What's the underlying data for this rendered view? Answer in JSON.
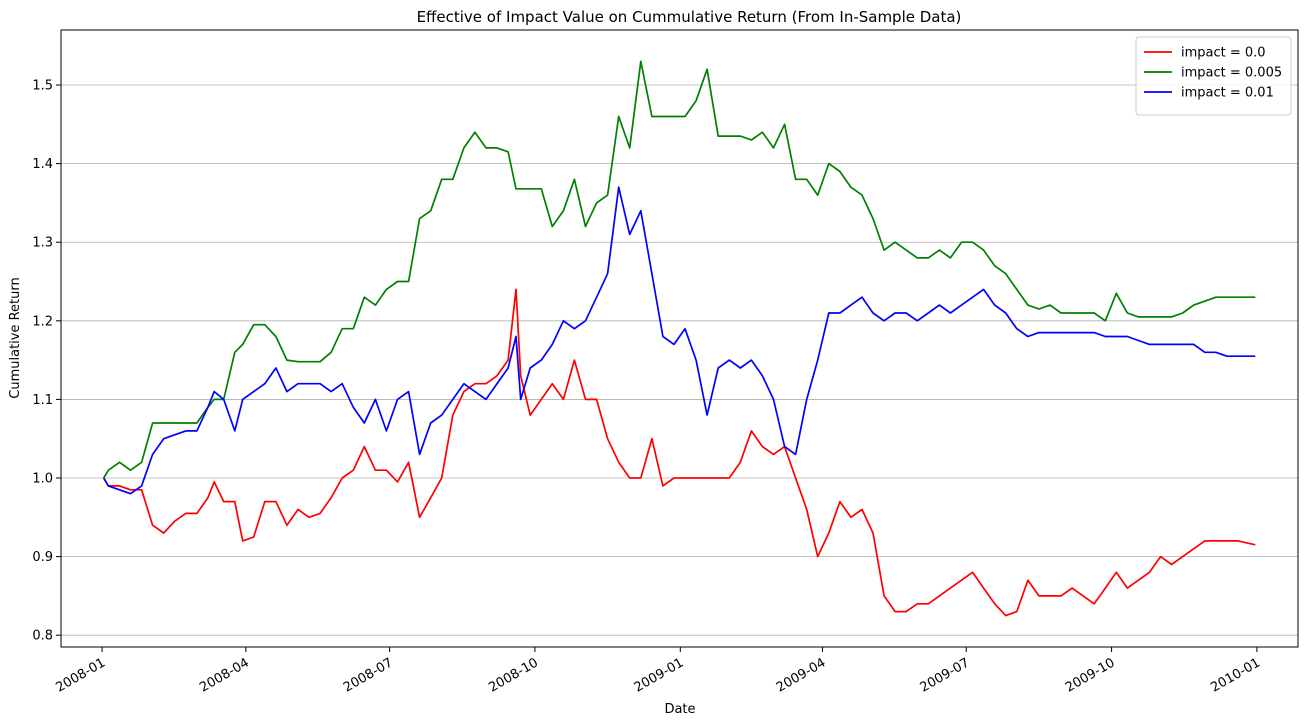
{
  "chart_data": {
    "type": "line",
    "title": "Effective of Impact Value on Cummulative Return (From In-Sample Data)",
    "xlabel": "Date",
    "ylabel": "Cumulative Return",
    "xlim": [
      "2007-12-06",
      "2010-01-27"
    ],
    "ylim": [
      0.785,
      1.57
    ],
    "yticks": [
      0.8,
      0.9,
      1.0,
      1.1,
      1.2,
      1.3,
      1.4,
      1.5
    ],
    "ytick_labels": [
      "0.8",
      "0.9",
      "1.0",
      "1.1",
      "1.2",
      "1.3",
      "1.4",
      "1.5"
    ],
    "xticks": [
      "2008-01-01",
      "2008-04-01",
      "2008-07-01",
      "2008-10-01",
      "2009-01-01",
      "2009-04-01",
      "2009-07-01",
      "2009-10-01",
      "2010-01-01"
    ],
    "xtick_labels": [
      "2008-01",
      "2008-04",
      "2008-07",
      "2008-10",
      "2009-01",
      "2009-04",
      "2009-07",
      "2009-10",
      "2010-01"
    ],
    "grid": "horizontal",
    "legend": "top-right",
    "series": [
      {
        "name": "impact = 0.0",
        "color": "#ff0000",
        "x": [
          "2008-01-02",
          "2008-01-05",
          "2008-01-12",
          "2008-01-19",
          "2008-01-26",
          "2008-02-02",
          "2008-02-09",
          "2008-02-16",
          "2008-02-23",
          "2008-03-01",
          "2008-03-08",
          "2008-03-12",
          "2008-03-18",
          "2008-03-25",
          "2008-03-30",
          "2008-04-06",
          "2008-04-13",
          "2008-04-20",
          "2008-04-27",
          "2008-05-04",
          "2008-05-11",
          "2008-05-18",
          "2008-05-25",
          "2008-06-01",
          "2008-06-08",
          "2008-06-15",
          "2008-06-22",
          "2008-06-29",
          "2008-07-06",
          "2008-07-13",
          "2008-07-20",
          "2008-07-27",
          "2008-08-03",
          "2008-08-10",
          "2008-08-17",
          "2008-08-24",
          "2008-08-31",
          "2008-09-07",
          "2008-09-14",
          "2008-09-19",
          "2008-09-22",
          "2008-09-28",
          "2008-10-05",
          "2008-10-12",
          "2008-10-19",
          "2008-10-26",
          "2008-11-02",
          "2008-11-09",
          "2008-11-16",
          "2008-11-23",
          "2008-11-30",
          "2008-12-07",
          "2008-12-14",
          "2008-12-21",
          "2008-12-28",
          "2009-01-04",
          "2009-01-11",
          "2009-01-18",
          "2009-01-25",
          "2009-02-01",
          "2009-02-08",
          "2009-02-15",
          "2009-02-22",
          "2009-03-01",
          "2009-03-08",
          "2009-03-15",
          "2009-03-22",
          "2009-03-29",
          "2009-04-05",
          "2009-04-12",
          "2009-04-19",
          "2009-04-26",
          "2009-05-03",
          "2009-05-10",
          "2009-05-17",
          "2009-05-24",
          "2009-05-31",
          "2009-06-07",
          "2009-06-14",
          "2009-06-21",
          "2009-06-28",
          "2009-07-05",
          "2009-07-12",
          "2009-07-19",
          "2009-07-26",
          "2009-08-02",
          "2009-08-09",
          "2009-08-16",
          "2009-08-23",
          "2009-08-30",
          "2009-09-06",
          "2009-09-13",
          "2009-09-20",
          "2009-09-27",
          "2009-10-04",
          "2009-10-11",
          "2009-10-18",
          "2009-10-25",
          "2009-11-01",
          "2009-11-08",
          "2009-11-15",
          "2009-11-22",
          "2009-11-29",
          "2009-12-06",
          "2009-12-13",
          "2009-12-20",
          "2009-12-31"
        ],
        "y": [
          1.0,
          0.99,
          0.99,
          0.985,
          0.985,
          0.94,
          0.93,
          0.945,
          0.955,
          0.955,
          0.975,
          0.995,
          0.97,
          0.97,
          0.92,
          0.925,
          0.97,
          0.97,
          0.94,
          0.96,
          0.95,
          0.955,
          0.975,
          1.0,
          1.01,
          1.04,
          1.01,
          1.01,
          0.995,
          1.02,
          0.95,
          0.975,
          1.0,
          1.08,
          1.11,
          1.12,
          1.12,
          1.13,
          1.15,
          1.24,
          1.13,
          1.08,
          1.1,
          1.12,
          1.1,
          1.15,
          1.1,
          1.1,
          1.05,
          1.02,
          1.0,
          1.0,
          1.05,
          0.99,
          1.0,
          1.0,
          1.0,
          1.0,
          1.0,
          1.0,
          1.02,
          1.06,
          1.04,
          1.03,
          1.04,
          1.0,
          0.96,
          0.9,
          0.93,
          0.97,
          0.95,
          0.96,
          0.93,
          0.85,
          0.83,
          0.83,
          0.84,
          0.84,
          0.85,
          0.86,
          0.87,
          0.88,
          0.86,
          0.84,
          0.825,
          0.83,
          0.87,
          0.85,
          0.85,
          0.85,
          0.86,
          0.85,
          0.84,
          0.86,
          0.88,
          0.86,
          0.87,
          0.88,
          0.9,
          0.89,
          0.9,
          0.91,
          0.92,
          0.92,
          0.92,
          0.92,
          0.915
        ]
      },
      {
        "name": "impact = 0.005",
        "color": "#008000",
        "x": [
          "2008-01-02",
          "2008-01-05",
          "2008-01-12",
          "2008-01-19",
          "2008-01-26",
          "2008-02-02",
          "2008-02-09",
          "2008-02-16",
          "2008-02-23",
          "2008-03-01",
          "2008-03-08",
          "2008-03-12",
          "2008-03-18",
          "2008-03-25",
          "2008-03-30",
          "2008-04-06",
          "2008-04-13",
          "2008-04-20",
          "2008-04-27",
          "2008-05-04",
          "2008-05-11",
          "2008-05-18",
          "2008-05-25",
          "2008-06-01",
          "2008-06-08",
          "2008-06-15",
          "2008-06-22",
          "2008-06-29",
          "2008-07-06",
          "2008-07-13",
          "2008-07-20",
          "2008-07-27",
          "2008-08-03",
          "2008-08-10",
          "2008-08-17",
          "2008-08-24",
          "2008-08-31",
          "2008-09-07",
          "2008-09-14",
          "2008-09-19",
          "2008-09-22",
          "2008-09-28",
          "2008-10-05",
          "2008-10-12",
          "2008-10-19",
          "2008-10-26",
          "2008-11-02",
          "2008-11-09",
          "2008-11-16",
          "2008-11-23",
          "2008-11-30",
          "2008-12-07",
          "2008-12-14",
          "2008-12-21",
          "2008-12-28",
          "2009-01-04",
          "2009-01-11",
          "2009-01-18",
          "2009-01-25",
          "2009-02-01",
          "2009-02-08",
          "2009-02-15",
          "2009-02-22",
          "2009-03-01",
          "2009-03-08",
          "2009-03-15",
          "2009-03-22",
          "2009-03-29",
          "2009-04-05",
          "2009-04-12",
          "2009-04-19",
          "2009-04-26",
          "2009-05-03",
          "2009-05-10",
          "2009-05-17",
          "2009-05-24",
          "2009-05-31",
          "2009-06-07",
          "2009-06-14",
          "2009-06-21",
          "2009-06-28",
          "2009-07-05",
          "2009-07-12",
          "2009-07-19",
          "2009-07-26",
          "2009-08-02",
          "2009-08-09",
          "2009-08-16",
          "2009-08-23",
          "2009-08-30",
          "2009-09-06",
          "2009-09-13",
          "2009-09-20",
          "2009-09-27",
          "2009-10-04",
          "2009-10-11",
          "2009-10-18",
          "2009-10-25",
          "2009-11-01",
          "2009-11-08",
          "2009-11-15",
          "2009-11-22",
          "2009-11-29",
          "2009-12-06",
          "2009-12-13",
          "2009-12-20",
          "2009-12-31"
        ],
        "y": [
          1.0,
          1.01,
          1.02,
          1.01,
          1.02,
          1.07,
          1.07,
          1.07,
          1.07,
          1.07,
          1.09,
          1.1,
          1.1,
          1.16,
          1.17,
          1.195,
          1.195,
          1.18,
          1.15,
          1.148,
          1.148,
          1.148,
          1.16,
          1.19,
          1.19,
          1.23,
          1.22,
          1.24,
          1.25,
          1.25,
          1.33,
          1.34,
          1.38,
          1.38,
          1.42,
          1.44,
          1.42,
          1.42,
          1.415,
          1.368,
          1.368,
          1.368,
          1.368,
          1.32,
          1.34,
          1.38,
          1.32,
          1.35,
          1.36,
          1.46,
          1.42,
          1.53,
          1.46,
          1.46,
          1.46,
          1.46,
          1.48,
          1.52,
          1.435,
          1.435,
          1.435,
          1.43,
          1.44,
          1.42,
          1.45,
          1.38,
          1.38,
          1.36,
          1.4,
          1.39,
          1.37,
          1.36,
          1.33,
          1.29,
          1.3,
          1.29,
          1.28,
          1.28,
          1.29,
          1.28,
          1.3,
          1.3,
          1.29,
          1.27,
          1.26,
          1.24,
          1.22,
          1.215,
          1.22,
          1.21,
          1.21,
          1.21,
          1.21,
          1.2,
          1.235,
          1.21,
          1.205,
          1.205,
          1.205,
          1.205,
          1.21,
          1.22,
          1.225,
          1.23,
          1.23,
          1.23,
          1.23
        ]
      },
      {
        "name": "impact = 0.01",
        "color": "#0000ff",
        "x": [
          "2008-01-02",
          "2008-01-05",
          "2008-01-12",
          "2008-01-19",
          "2008-01-26",
          "2008-02-02",
          "2008-02-09",
          "2008-02-16",
          "2008-02-23",
          "2008-03-01",
          "2008-03-08",
          "2008-03-12",
          "2008-03-18",
          "2008-03-25",
          "2008-03-30",
          "2008-04-06",
          "2008-04-13",
          "2008-04-20",
          "2008-04-27",
          "2008-05-04",
          "2008-05-11",
          "2008-05-18",
          "2008-05-25",
          "2008-06-01",
          "2008-06-08",
          "2008-06-15",
          "2008-06-22",
          "2008-06-29",
          "2008-07-06",
          "2008-07-13",
          "2008-07-20",
          "2008-07-27",
          "2008-08-03",
          "2008-08-10",
          "2008-08-17",
          "2008-08-24",
          "2008-08-31",
          "2008-09-07",
          "2008-09-14",
          "2008-09-19",
          "2008-09-22",
          "2008-09-28",
          "2008-10-05",
          "2008-10-12",
          "2008-10-19",
          "2008-10-26",
          "2008-11-02",
          "2008-11-09",
          "2008-11-16",
          "2008-11-23",
          "2008-11-30",
          "2008-12-07",
          "2008-12-14",
          "2008-12-21",
          "2008-12-28",
          "2009-01-04",
          "2009-01-11",
          "2009-01-18",
          "2009-01-25",
          "2009-02-01",
          "2009-02-08",
          "2009-02-15",
          "2009-02-22",
          "2009-03-01",
          "2009-03-08",
          "2009-03-15",
          "2009-03-22",
          "2009-03-29",
          "2009-04-05",
          "2009-04-12",
          "2009-04-19",
          "2009-04-26",
          "2009-05-03",
          "2009-05-10",
          "2009-05-17",
          "2009-05-24",
          "2009-05-31",
          "2009-06-07",
          "2009-06-14",
          "2009-06-21",
          "2009-06-28",
          "2009-07-05",
          "2009-07-12",
          "2009-07-19",
          "2009-07-26",
          "2009-08-02",
          "2009-08-09",
          "2009-08-16",
          "2009-08-23",
          "2009-08-30",
          "2009-09-06",
          "2009-09-13",
          "2009-09-20",
          "2009-09-27",
          "2009-10-04",
          "2009-10-11",
          "2009-10-18",
          "2009-10-25",
          "2009-11-01",
          "2009-11-08",
          "2009-11-15",
          "2009-11-22",
          "2009-11-29",
          "2009-12-06",
          "2009-12-13",
          "2009-12-20",
          "2009-12-31"
        ],
        "y": [
          1.0,
          0.99,
          0.985,
          0.98,
          0.99,
          1.03,
          1.05,
          1.055,
          1.06,
          1.06,
          1.09,
          1.11,
          1.1,
          1.06,
          1.1,
          1.11,
          1.12,
          1.14,
          1.11,
          1.12,
          1.12,
          1.12,
          1.11,
          1.12,
          1.09,
          1.07,
          1.1,
          1.06,
          1.1,
          1.11,
          1.03,
          1.07,
          1.08,
          1.1,
          1.12,
          1.11,
          1.1,
          1.12,
          1.14,
          1.18,
          1.1,
          1.14,
          1.15,
          1.17,
          1.2,
          1.19,
          1.2,
          1.23,
          1.26,
          1.37,
          1.31,
          1.34,
          1.26,
          1.18,
          1.17,
          1.19,
          1.15,
          1.08,
          1.14,
          1.15,
          1.14,
          1.15,
          1.13,
          1.1,
          1.04,
          1.03,
          1.1,
          1.15,
          1.21,
          1.21,
          1.22,
          1.23,
          1.21,
          1.2,
          1.21,
          1.21,
          1.2,
          1.21,
          1.22,
          1.21,
          1.22,
          1.23,
          1.24,
          1.22,
          1.21,
          1.19,
          1.18,
          1.185,
          1.185,
          1.185,
          1.185,
          1.185,
          1.185,
          1.18,
          1.18,
          1.18,
          1.175,
          1.17,
          1.17,
          1.17,
          1.17,
          1.17,
          1.16,
          1.16,
          1.155,
          1.155,
          1.155
        ]
      }
    ]
  }
}
